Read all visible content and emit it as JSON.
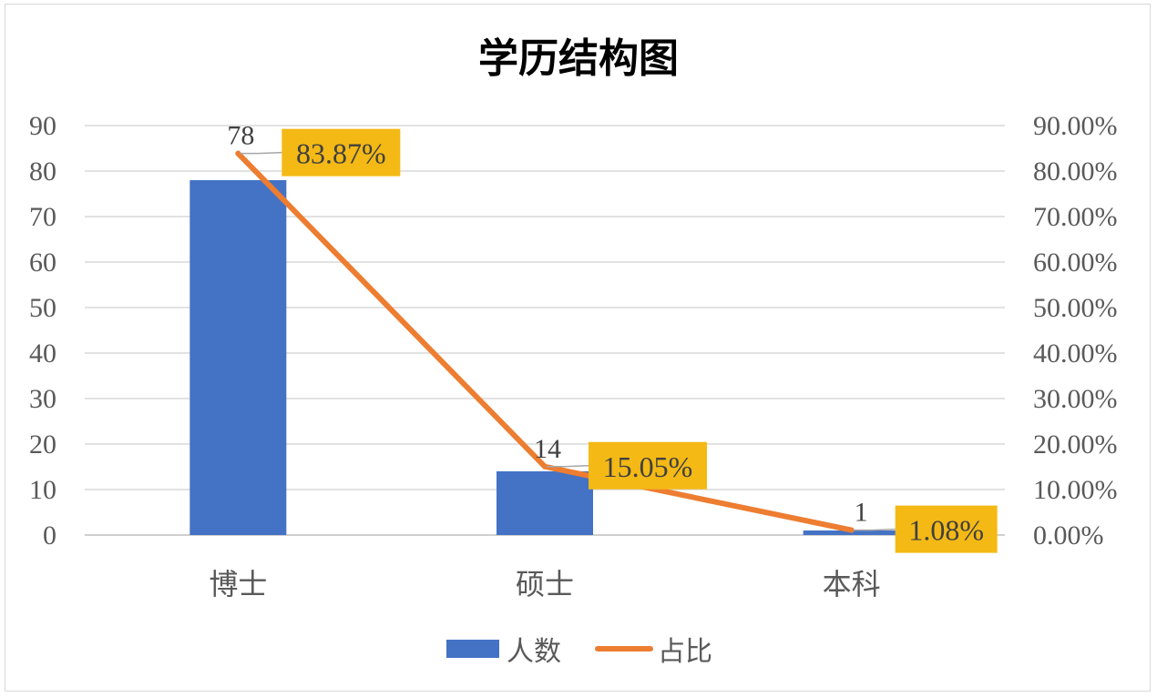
{
  "chart_data": {
    "type": "bar",
    "title": "学历结构图",
    "categories": [
      "博士",
      "硕士",
      "本科"
    ],
    "series": [
      {
        "name": "人数",
        "type": "bar",
        "axis": "left",
        "values": [
          78,
          14,
          1
        ],
        "labels": [
          "78",
          "14",
          "1"
        ],
        "color": "#4472C4"
      },
      {
        "name": "占比",
        "type": "line",
        "axis": "right",
        "values": [
          83.87,
          15.05,
          1.08
        ],
        "labels": [
          "83.87%",
          "15.05%",
          "1.08%"
        ],
        "color": "#ED7D31"
      }
    ],
    "y_left": {
      "min": 0,
      "max": 90,
      "step": 10,
      "ticks": [
        "0",
        "10",
        "20",
        "30",
        "40",
        "50",
        "60",
        "70",
        "80",
        "90"
      ]
    },
    "y_right": {
      "min": 0,
      "max": 90,
      "step": 10,
      "ticks": [
        "0.00%",
        "10.00%",
        "20.00%",
        "30.00%",
        "40.00%",
        "50.00%",
        "60.00%",
        "70.00%",
        "80.00%",
        "90.00%"
      ]
    },
    "grid": true,
    "legend_position": "bottom",
    "pct_label_bg": "#F4B915"
  }
}
